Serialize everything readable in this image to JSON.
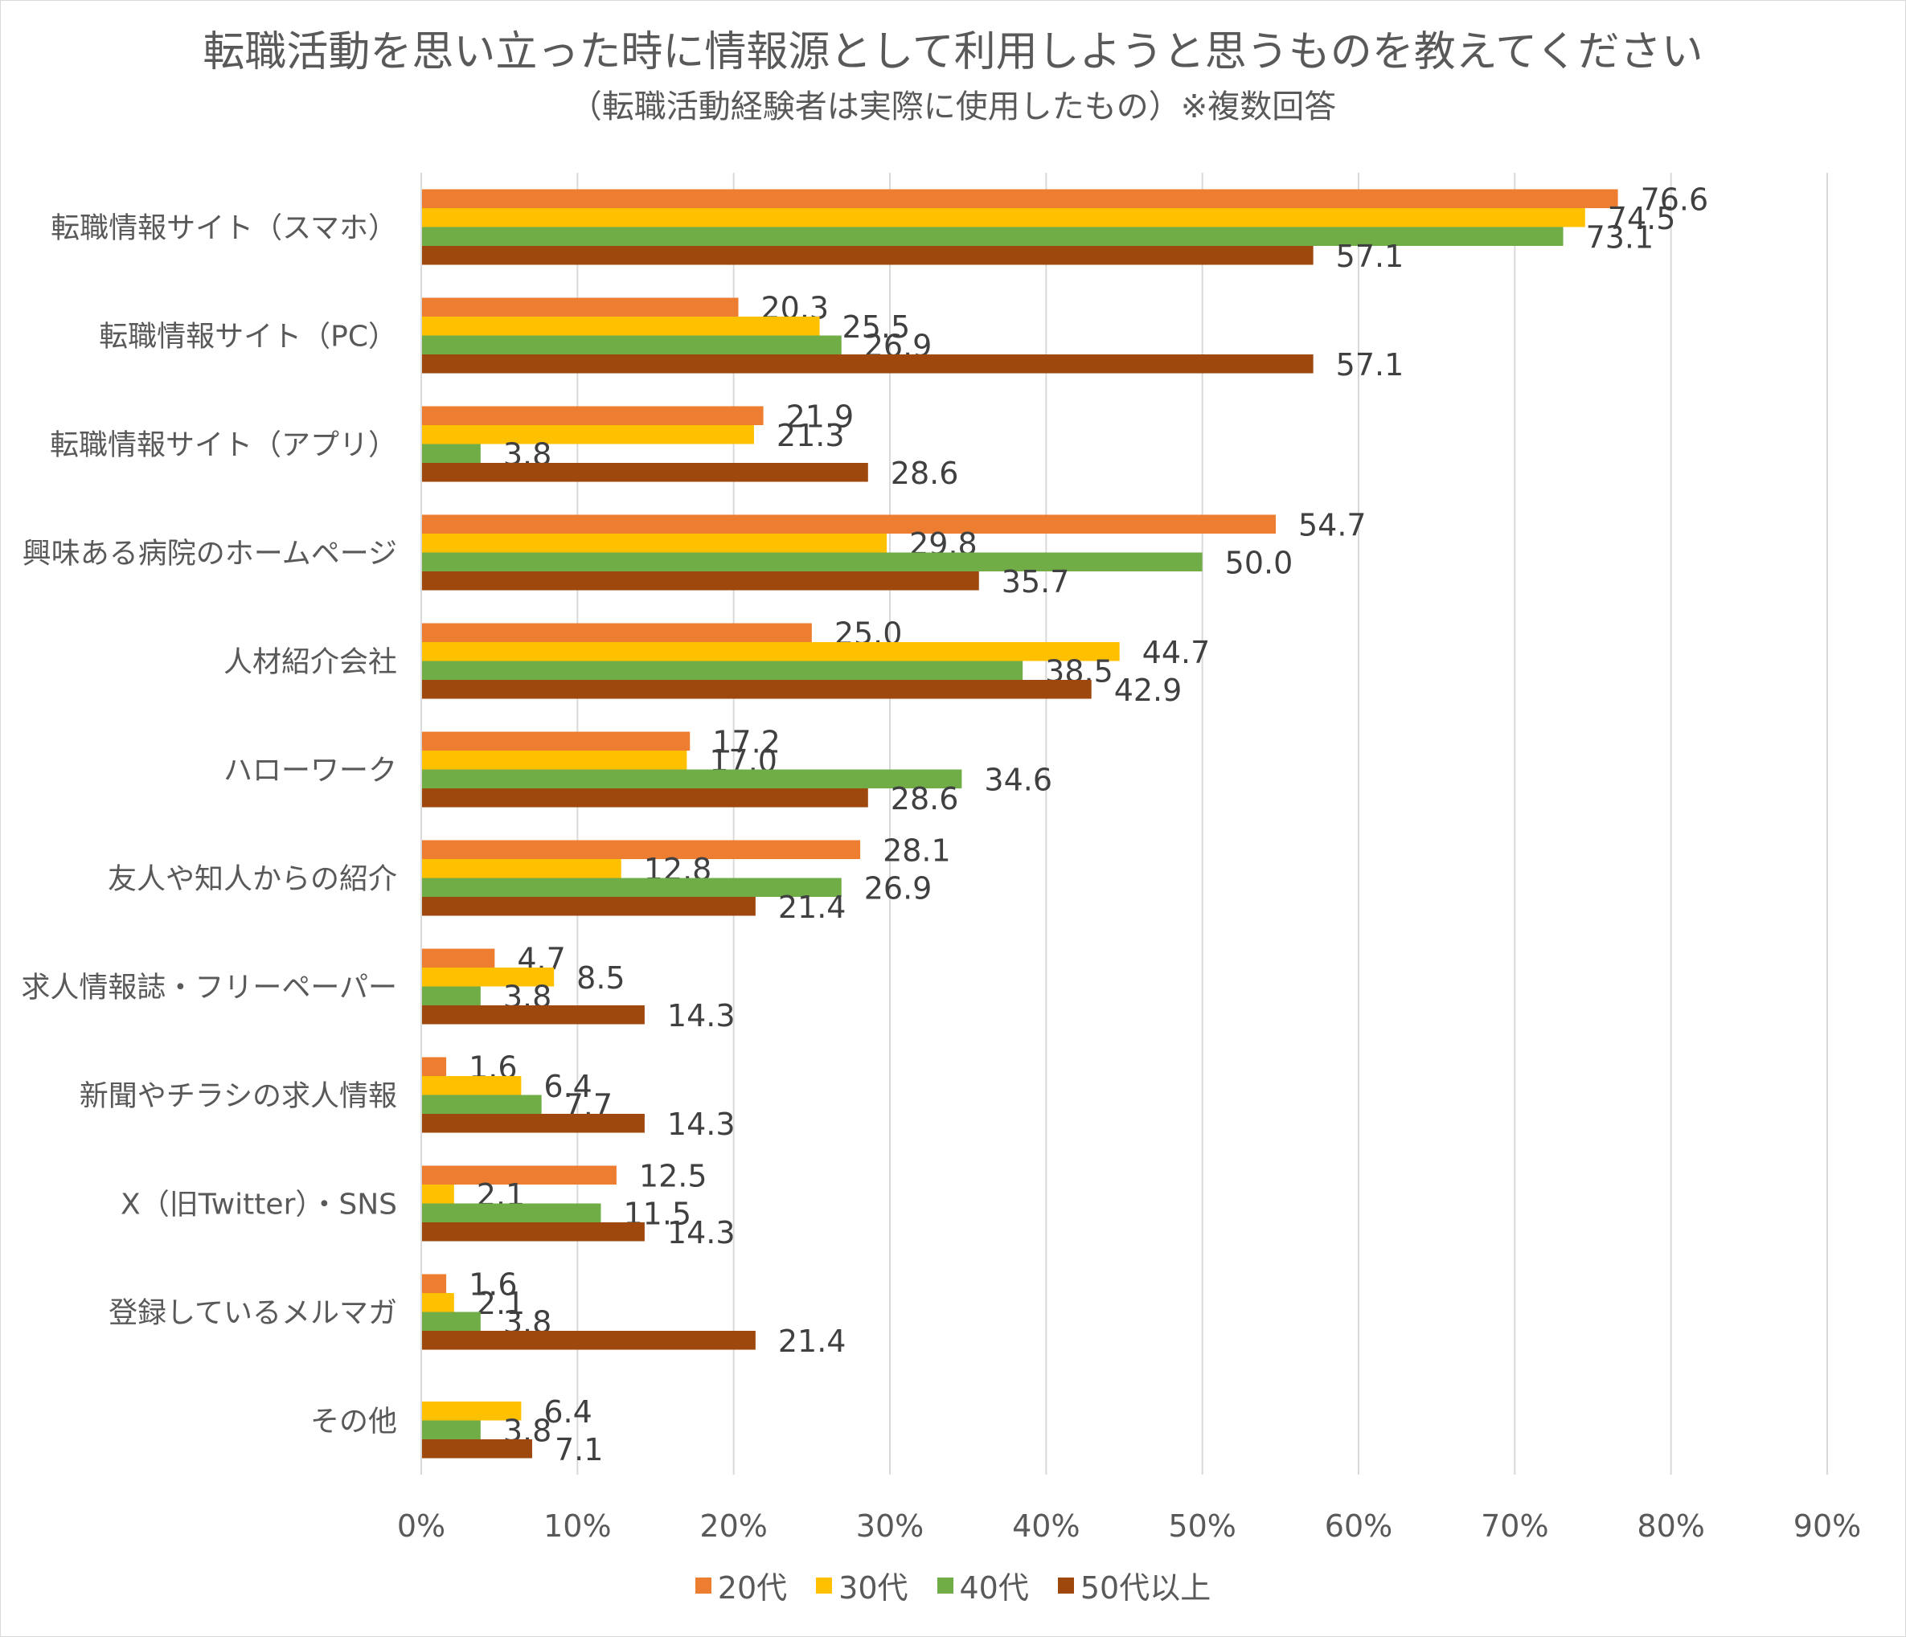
{
  "chart_data": {
    "type": "bar",
    "orientation": "horizontal",
    "title": "転職活動を思い立った時に情報源として利用しようと思うものを教えてください",
    "subtitle": "（転職活動経験者は実際に使用したもの）※複数回答",
    "categories": [
      "転職情報サイト（スマホ）",
      "転職情報サイト（PC）",
      "転職情報サイト（アプリ）",
      "興味ある病院のホームページ",
      "人材紹介会社",
      "ハローワーク",
      "友人や知人からの紹介",
      "求人情報誌・フリーペーパー",
      "新聞やチラシの求人情報",
      "X（旧Twitter）・SNS",
      "登録しているメルマガ",
      "その他"
    ],
    "series": [
      {
        "name": "20代",
        "color": "#ed7d31",
        "values": [
          76.6,
          20.3,
          21.9,
          54.7,
          25.0,
          17.2,
          28.1,
          4.7,
          1.6,
          12.5,
          1.6,
          null
        ],
        "labels": [
          "76.6",
          "20.3",
          "21.9",
          "54.7",
          "25.0",
          "17.2",
          "28.1",
          "4.7",
          "1.6",
          "12.5",
          "1.6",
          ""
        ]
      },
      {
        "name": "30代",
        "color": "#ffc000",
        "values": [
          74.5,
          25.5,
          21.3,
          29.8,
          44.7,
          17.0,
          12.8,
          8.5,
          6.4,
          2.1,
          2.1,
          6.4
        ],
        "labels": [
          "74.5",
          "25.5",
          "21.3",
          "29.8",
          "44.7",
          "17.0",
          "12.8",
          "8.5",
          "6.4",
          "2.1",
          "2.1",
          "6.4"
        ]
      },
      {
        "name": "40代",
        "color": "#70ad47",
        "values": [
          73.1,
          26.9,
          3.8,
          50.0,
          38.5,
          34.6,
          26.9,
          3.8,
          7.7,
          11.5,
          3.8,
          3.8
        ],
        "labels": [
          "73.1",
          "26.9",
          "3.8",
          "50.0",
          "38.5",
          "34.6",
          "26.9",
          "3.8",
          "7.7",
          "11.5",
          "3.8",
          "3.8"
        ]
      },
      {
        "name": "50代以上",
        "color": "#9e480e",
        "values": [
          57.1,
          57.1,
          28.6,
          35.7,
          42.9,
          28.6,
          21.4,
          14.3,
          14.3,
          14.3,
          21.4,
          7.1
        ],
        "labels": [
          "57.1",
          "57.1",
          "28.6",
          "35.7",
          "42.9",
          "28.6",
          "21.4",
          "14.3",
          "14.3",
          "14.3",
          "21.4",
          "7.1"
        ]
      }
    ],
    "xlim": [
      0,
      90
    ],
    "xticks": [
      "0%",
      "10%",
      "20%",
      "30%",
      "40%",
      "50%",
      "60%",
      "70%",
      "80%",
      "90%"
    ],
    "grid": true,
    "legend": "bottom"
  }
}
